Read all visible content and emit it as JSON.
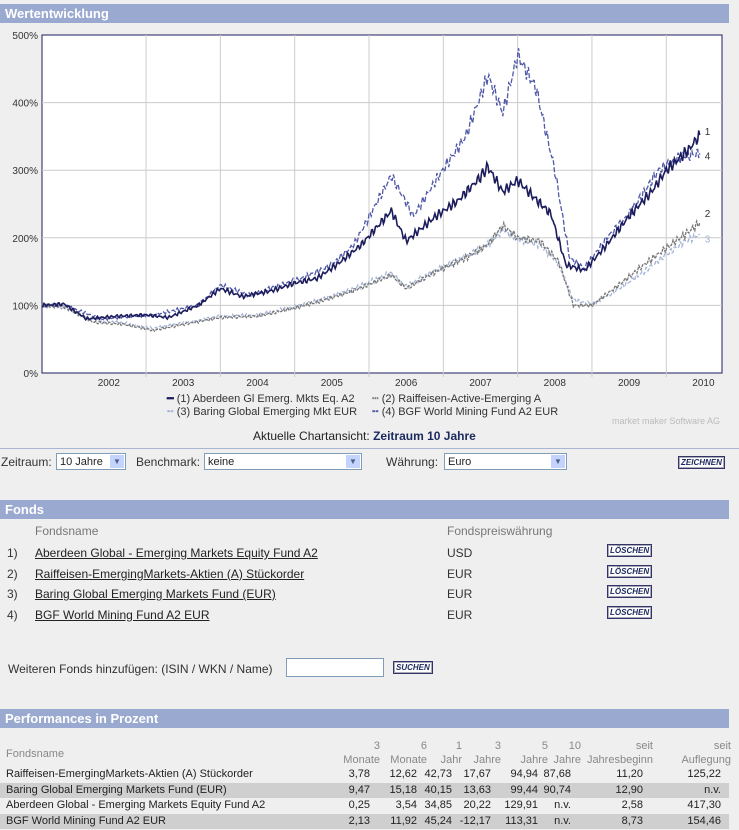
{
  "sections": {
    "chart_title": "Wertentwicklung",
    "fonds_title": "Fonds",
    "perf_title": "Performances in Prozent"
  },
  "chart_data": {
    "type": "line",
    "title": "Wertentwicklung",
    "y_ticks": [
      "0%",
      "100%",
      "200%",
      "300%",
      "400%",
      "500%"
    ],
    "ylim": [
      0,
      500
    ],
    "xlim": [
      2001.6,
      2010.75
    ],
    "x_ticks": [
      "2002",
      "2003",
      "2004",
      "2005",
      "2006",
      "2007",
      "2008",
      "2009",
      "2010"
    ],
    "series": [
      {
        "name": "(1) Aberdeen Gl Emerg. Mkts Eq. A2",
        "end_label": "1",
        "color": "#1c1c5c",
        "dash": "",
        "points": [
          [
            2001.6,
            100
          ],
          [
            2001.9,
            102
          ],
          [
            2002.2,
            80
          ],
          [
            2002.6,
            84
          ],
          [
            2003.0,
            86
          ],
          [
            2003.3,
            82
          ],
          [
            2003.7,
            100
          ],
          [
            2004.0,
            125
          ],
          [
            2004.3,
            113
          ],
          [
            2004.7,
            122
          ],
          [
            2005.0,
            133
          ],
          [
            2005.3,
            140
          ],
          [
            2005.6,
            163
          ],
          [
            2005.9,
            190
          ],
          [
            2006.3,
            240
          ],
          [
            2006.5,
            195
          ],
          [
            2006.9,
            232
          ],
          [
            2007.2,
            255
          ],
          [
            2007.5,
            290
          ],
          [
            2007.6,
            305
          ],
          [
            2007.8,
            268
          ],
          [
            2008.0,
            285
          ],
          [
            2008.2,
            262
          ],
          [
            2008.45,
            235
          ],
          [
            2008.65,
            160
          ],
          [
            2008.9,
            152
          ],
          [
            2009.2,
            190
          ],
          [
            2009.5,
            232
          ],
          [
            2009.8,
            268
          ],
          [
            2010.0,
            300
          ],
          [
            2010.3,
            330
          ],
          [
            2010.45,
            352
          ]
        ]
      },
      {
        "name": "(2) Raiffeisen-Active-Emerging A",
        "end_label": "2",
        "color": "#777777",
        "dash": "3,1",
        "points": [
          [
            2001.6,
            100
          ],
          [
            2001.9,
            98
          ],
          [
            2002.3,
            75
          ],
          [
            2002.7,
            72
          ],
          [
            2003.1,
            63
          ],
          [
            2003.5,
            72
          ],
          [
            2004.0,
            82
          ],
          [
            2004.5,
            84
          ],
          [
            2005.0,
            96
          ],
          [
            2005.4,
            108
          ],
          [
            2005.8,
            122
          ],
          [
            2006.3,
            145
          ],
          [
            2006.5,
            125
          ],
          [
            2006.9,
            150
          ],
          [
            2007.3,
            170
          ],
          [
            2007.6,
            190
          ],
          [
            2007.8,
            218
          ],
          [
            2008.0,
            200
          ],
          [
            2008.3,
            195
          ],
          [
            2008.55,
            165
          ],
          [
            2008.75,
            100
          ],
          [
            2009.0,
            100
          ],
          [
            2009.3,
            125
          ],
          [
            2009.7,
            160
          ],
          [
            2010.0,
            185
          ],
          [
            2010.25,
            205
          ],
          [
            2010.45,
            222
          ]
        ]
      },
      {
        "name": "(3) Baring Global Emerging Mkt EUR",
        "end_label": "3",
        "color": "#a4b4d6",
        "dash": "4,2",
        "points": [
          [
            2001.6,
            100
          ],
          [
            2001.9,
            97
          ],
          [
            2002.3,
            78
          ],
          [
            2002.7,
            74
          ],
          [
            2003.1,
            66
          ],
          [
            2003.5,
            74
          ],
          [
            2004.0,
            84
          ],
          [
            2004.5,
            86
          ],
          [
            2005.0,
            98
          ],
          [
            2005.4,
            110
          ],
          [
            2005.8,
            125
          ],
          [
            2006.3,
            148
          ],
          [
            2006.5,
            128
          ],
          [
            2006.9,
            152
          ],
          [
            2007.3,
            172
          ],
          [
            2007.6,
            190
          ],
          [
            2007.8,
            212
          ],
          [
            2008.0,
            198
          ],
          [
            2008.3,
            190
          ],
          [
            2008.55,
            162
          ],
          [
            2008.75,
            108
          ],
          [
            2009.0,
            102
          ],
          [
            2009.3,
            120
          ],
          [
            2009.7,
            150
          ],
          [
            2010.0,
            175
          ],
          [
            2010.25,
            195
          ],
          [
            2010.45,
            205
          ]
        ]
      },
      {
        "name": "(4) BGF World Mining Fund A2 EUR",
        "end_label": "4",
        "color": "#5058a8",
        "dash": "5,2",
        "points": [
          [
            2001.6,
            100
          ],
          [
            2001.9,
            100
          ],
          [
            2002.4,
            80
          ],
          [
            2002.8,
            84
          ],
          [
            2003.1,
            86
          ],
          [
            2003.7,
            100
          ],
          [
            2004.0,
            130
          ],
          [
            2004.4,
            115
          ],
          [
            2004.8,
            130
          ],
          [
            2005.1,
            140
          ],
          [
            2005.5,
            160
          ],
          [
            2005.8,
            190
          ],
          [
            2006.3,
            292
          ],
          [
            2006.6,
            232
          ],
          [
            2006.9,
            285
          ],
          [
            2007.3,
            350
          ],
          [
            2007.6,
            440
          ],
          [
            2007.8,
            385
          ],
          [
            2008.0,
            470
          ],
          [
            2008.25,
            420
          ],
          [
            2008.5,
            300
          ],
          [
            2008.7,
            170
          ],
          [
            2008.9,
            155
          ],
          [
            2009.2,
            200
          ],
          [
            2009.5,
            235
          ],
          [
            2009.9,
            300
          ],
          [
            2010.2,
            320
          ],
          [
            2010.45,
            325
          ]
        ]
      }
    ]
  },
  "chart_footer": {
    "credit": "market maker Software AG",
    "view_label": "Aktuelle Chartansicht:",
    "view_value": "Zeitraum 10 Jahre"
  },
  "controls": {
    "zeitraum_label": "Zeitraum:",
    "zeitraum_value": "10 Jahre",
    "benchmark_label": "Benchmark:",
    "benchmark_value": "keine",
    "waehrung_label": "Währung:",
    "waehrung_value": "Euro",
    "draw_button": "ZEICHNEN"
  },
  "fonds": {
    "col_name": "Fondsname",
    "col_currency": "Fondspreiswährung",
    "delete_label": "LÖSCHEN",
    "items": [
      {
        "num": "1)",
        "name": "Aberdeen Global - Emerging Markets Equity Fund A2",
        "currency": "USD"
      },
      {
        "num": "2)",
        "name": "Raiffeisen-EmergingMarkets-Aktien (A) Stückorder",
        "currency": "EUR"
      },
      {
        "num": "3)",
        "name": "Baring Global Emerging Markets Fund (EUR)",
        "currency": "EUR"
      },
      {
        "num": "4)",
        "name": "BGF World Mining Fund A2 EUR",
        "currency": "EUR"
      }
    ],
    "add_label": "Weiteren Fonds hinzufügen: (ISIN / WKN / Name)",
    "add_value": "",
    "search_button": "SUCHEN"
  },
  "performance": {
    "headers": [
      "Fondsname",
      "3\nMonate",
      "6\nMonate",
      "1\nJahr",
      "3\nJahre",
      "5\nJahre",
      "10\nJahre",
      "seit\nJahresbeginn",
      "seit\nAuflegung"
    ],
    "rows": [
      [
        "Raiffeisen-EmergingMarkets-Aktien (A) Stückorder",
        "3,78",
        "12,62",
        "42,73",
        "17,67",
        "94,94",
        "87,68",
        "11,20",
        "125,22"
      ],
      [
        "Baring Global Emerging Markets Fund (EUR)",
        "9,47",
        "15,18",
        "40,15",
        "13,63",
        "99,44",
        "90,74",
        "12,90",
        "n.v."
      ],
      [
        "Aberdeen Global - Emerging Markets Equity Fund A2",
        "0,25",
        "3,54",
        "34,85",
        "20,22",
        "129,91",
        "n.v.",
        "2,58",
        "417,30"
      ],
      [
        "BGF World Mining Fund A2 EUR",
        "2,13",
        "11,92",
        "45,24",
        "-12,17",
        "113,31",
        "n.v.",
        "8,73",
        "154,46"
      ]
    ]
  }
}
